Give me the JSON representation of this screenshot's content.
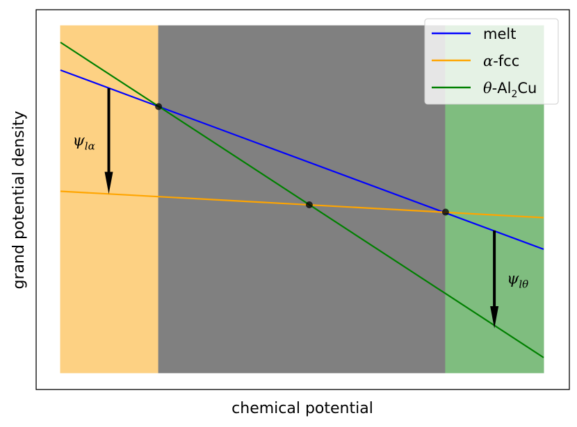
{
  "chart_data": {
    "type": "line",
    "title": "",
    "xlabel": "chemical potential",
    "ylabel": "grand potential density",
    "xlim": [
      0,
      1
    ],
    "ylim": [
      0,
      1
    ],
    "grid": false,
    "ticks": false,
    "legend_position": "top-right",
    "regions": [
      {
        "name": "alpha-region",
        "x": [
          0.0,
          0.203
        ],
        "color": "#fdd183"
      },
      {
        "name": "two-phase-region",
        "x": [
          0.203,
          0.797
        ],
        "color": "#808080"
      },
      {
        "name": "theta-region",
        "x": [
          0.797,
          1.0
        ],
        "color": "#7fbd7f"
      }
    ],
    "series": [
      {
        "name": "melt",
        "color": "#0000ff",
        "x": [
          0.0,
          1.0
        ],
        "y": [
          0.872,
          0.356
        ]
      },
      {
        "name": "α-fcc",
        "color": "#ffa500",
        "x": [
          0.0,
          1.0
        ],
        "y": [
          0.523,
          0.447
        ]
      },
      {
        "name": "θ-Al₂Cu",
        "color": "#008000",
        "x": [
          0.0,
          1.0
        ],
        "y": [
          0.952,
          0.044
        ]
      }
    ],
    "intersections": [
      {
        "x": 0.203,
        "y": 0.767
      },
      {
        "x": 0.515,
        "y": 0.484
      },
      {
        "x": 0.797,
        "y": 0.463
      }
    ],
    "annotations": [
      {
        "base": "ψ",
        "sub": "lα",
        "arrow_x": 0.1,
        "y_from": 0.82,
        "y_to": 0.515
      },
      {
        "base": "ψ",
        "sub": "lθ",
        "arrow_x": 0.898,
        "y_from": 0.41,
        "y_to": 0.128
      }
    ],
    "legend": [
      {
        "label": "melt",
        "color": "#0000ff"
      },
      {
        "label_prefix": "α",
        "label_rest": "-fcc",
        "color": "#ffa500"
      },
      {
        "label_prefix": "θ",
        "label_rest": "-Al",
        "label_sub": "2",
        "label_tail": "Cu",
        "color": "#008000"
      }
    ]
  }
}
